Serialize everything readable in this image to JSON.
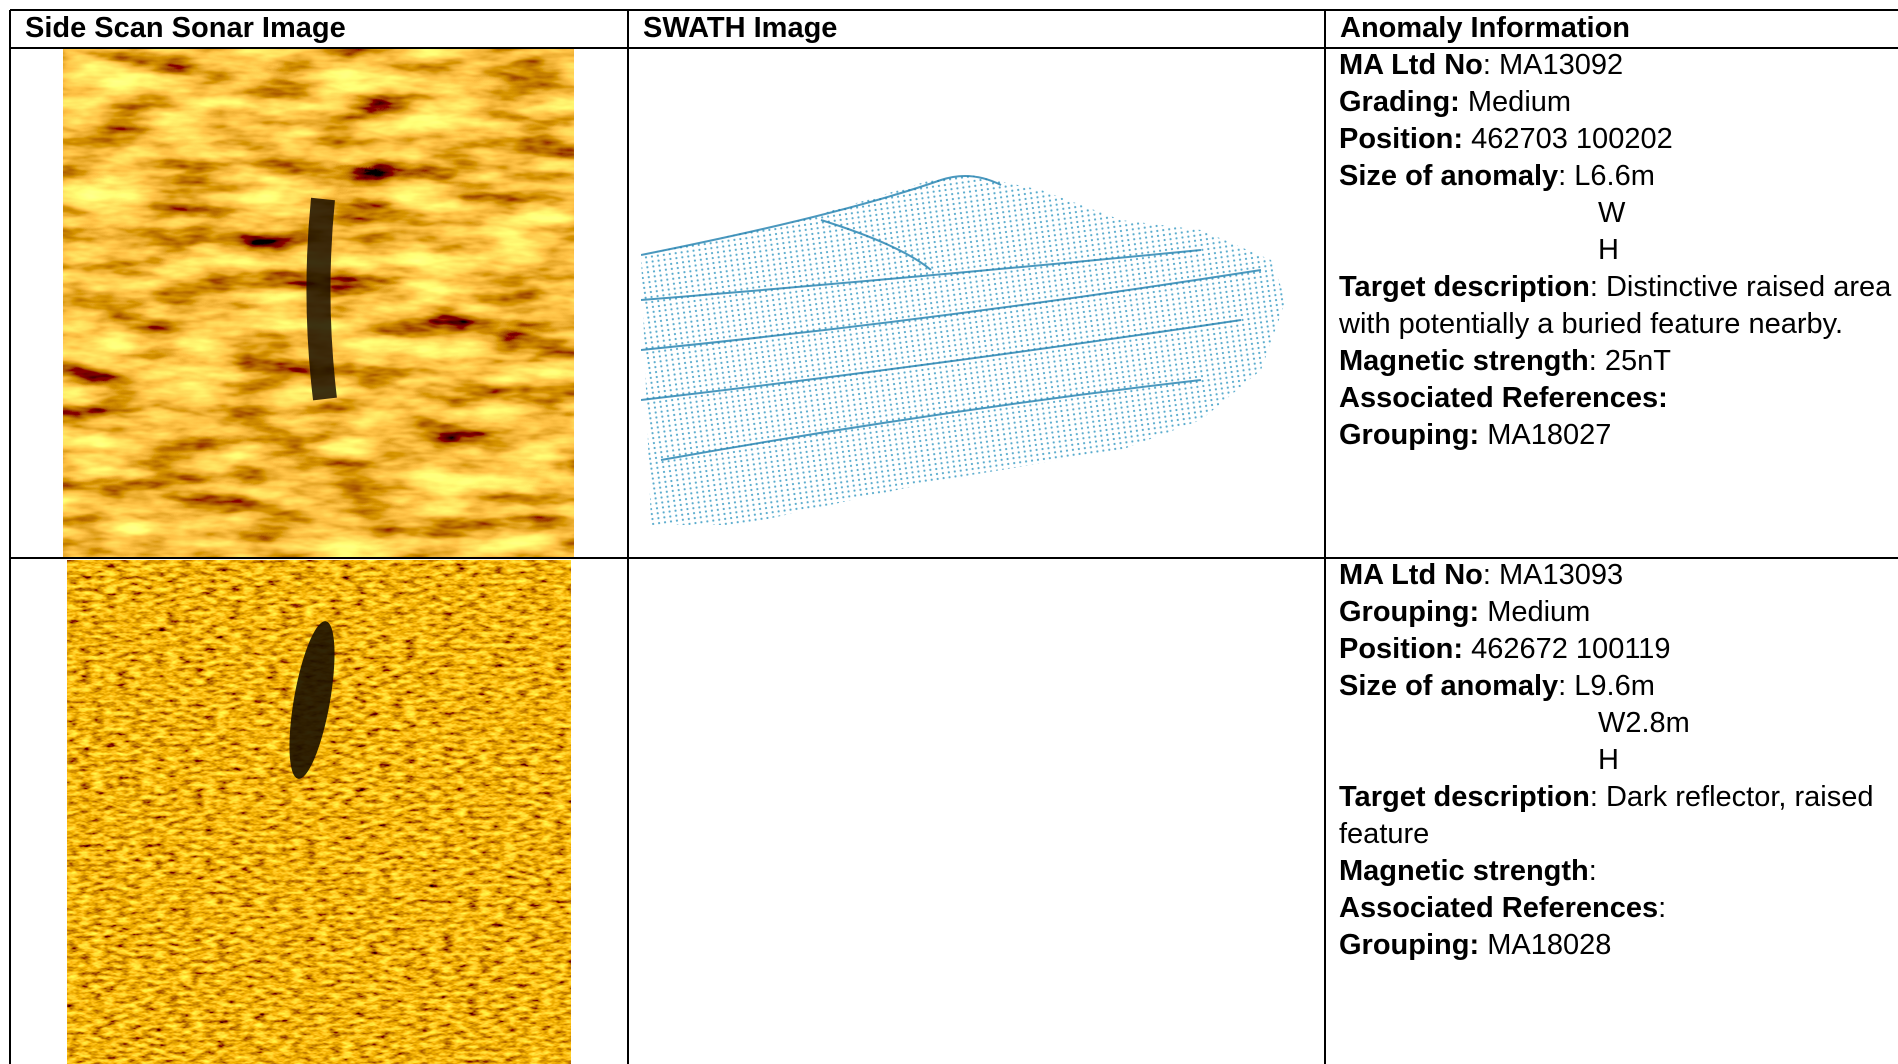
{
  "table": {
    "headers": [
      "Side Scan Sonar Image",
      "SWATH Image",
      "Anomaly Information"
    ],
    "rows": [
      {
        "info": [
          {
            "label": "MA Ltd No",
            "text": ": MA13092"
          },
          {
            "label": "Grading:",
            "text": " Medium"
          },
          {
            "label": "Position:",
            "text": " 462703 100202"
          },
          {
            "label": "Size of anomaly",
            "text": ": L6.6m",
            "more": [
              "W",
              "H"
            ]
          },
          {
            "label": "Target description",
            "text": ": Distinctive raised area with potentially a buried feature nearby."
          },
          {
            "label": "Magnetic strength",
            "text": ": 25nT"
          },
          {
            "label": "Associated References:"
          },
          {
            "label": "Grouping:",
            "text": " MA18027"
          }
        ]
      },
      {
        "info": [
          {
            "label": "MA Ltd No",
            "text": ": MA13093"
          },
          {
            "label": "Grouping:",
            "text": " Medium"
          },
          {
            "label": "Position:",
            "text": " 462672 100119"
          },
          {
            "label": "Size of anomaly",
            "text": ": L9.6m",
            "more": [
              "W2.8m",
              "H"
            ]
          },
          {
            "label": "Target description",
            "text": ": Dark reflector, raised feature"
          },
          {
            "label": "Magnetic strength",
            "text": ":"
          },
          {
            "label": "Associated References",
            "text": ":"
          },
          {
            "label": "Grouping:",
            "text": " MA18028"
          }
        ]
      }
    ]
  }
}
